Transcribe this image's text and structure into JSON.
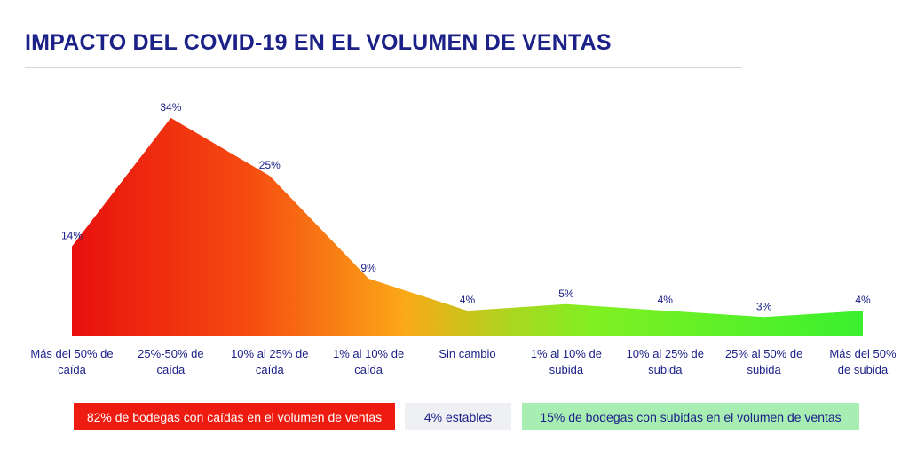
{
  "chart_data": {
    "type": "area",
    "title": "IMPACTO DEL COVID-19 EN EL VOLUMEN DE VENTAS",
    "categories": [
      [
        "Más del 50% de",
        "caída"
      ],
      [
        "25%-50% de",
        "caída"
      ],
      [
        "10% al 25% de",
        "caída"
      ],
      [
        "1% al 10% de",
        "caída"
      ],
      [
        "Sin cambio"
      ],
      [
        "1% al 10% de",
        "subida"
      ],
      [
        "10% al 25% de",
        "subida"
      ],
      [
        "25%  al 50% de",
        "subida"
      ],
      [
        "Más del 50%",
        "de subida"
      ]
    ],
    "values": [
      14,
      34,
      25,
      9,
      4,
      5,
      4,
      3,
      4
    ],
    "data_labels": [
      "14%",
      "34%",
      "25%",
      "9%",
      "4%",
      "5%",
      "4%",
      "3%",
      "4%"
    ],
    "ylim": [
      0,
      38
    ],
    "xlabel": "",
    "ylabel": "",
    "grid": false,
    "legend": "none",
    "fill_gradient": [
      "#e8100e",
      "#f54a10",
      "#fba818",
      "#a8d820",
      "#80f022",
      "#3af02e"
    ],
    "label_color": "#1c2187"
  },
  "summary_boxes": {
    "decline": "82% de bodegas con caídas en el volumen de ventas",
    "stable": "4% estables",
    "rise": "15% de bodegas con subidas en el volumen de ventas"
  },
  "colors": {
    "title": "#1c2187",
    "decline_box": "#ee1c10",
    "stable_box": "#eef0f4",
    "rise_box": "#a8eeb2"
  }
}
